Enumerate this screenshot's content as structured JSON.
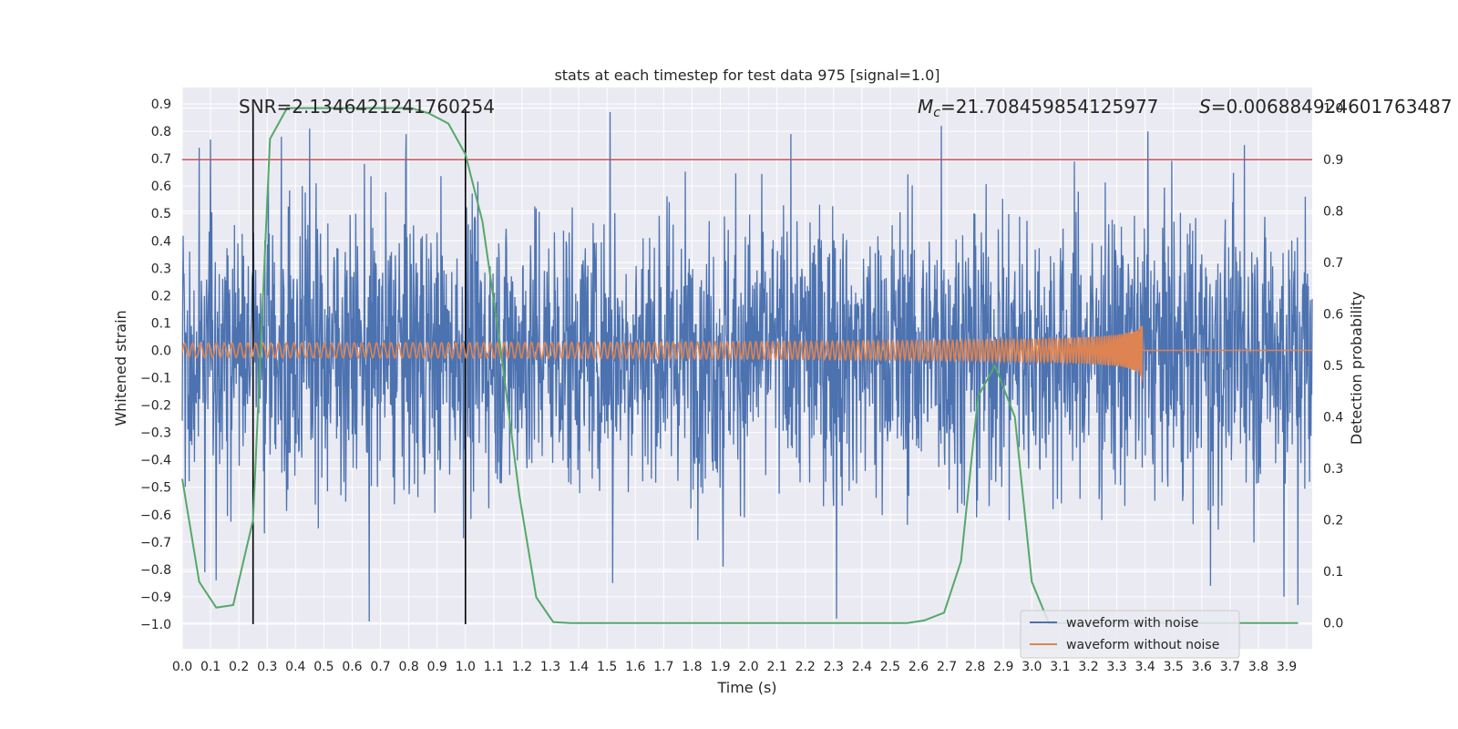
{
  "chart_data": {
    "type": "line",
    "title": "stats at each timestep for test data 975 [signal=1.0]",
    "xlabel": "Time (s)",
    "ylabel": "Whitened strain",
    "y2label": "Detection probability",
    "xlim": [
      0.0,
      3.99
    ],
    "ylim": [
      -1.09,
      0.96
    ],
    "y2lim": [
      -0.05,
      1.04
    ],
    "x_ticks": [
      "0.0",
      "0.1",
      "0.2",
      "0.3",
      "0.4",
      "0.5",
      "0.6",
      "0.7",
      "0.8",
      "0.9",
      "1.0",
      "1.1",
      "1.2",
      "1.3",
      "1.4",
      "1.5",
      "1.6",
      "1.7",
      "1.8",
      "1.9",
      "2.0",
      "2.1",
      "2.2",
      "2.3",
      "2.4",
      "2.5",
      "2.6",
      "2.7",
      "2.8",
      "2.9",
      "3.0",
      "3.1",
      "3.2",
      "3.3",
      "3.4",
      "3.5",
      "3.6",
      "3.7",
      "3.8",
      "3.9"
    ],
    "y_ticks": [
      "0.9",
      "0.8",
      "0.7",
      "0.6",
      "0.5",
      "0.4",
      "0.3",
      "0.2",
      "0.1",
      "0.0",
      "−0.1",
      "−0.2",
      "−0.3",
      "−0.4",
      "−0.5",
      "−0.6",
      "−0.7",
      "−0.8",
      "−0.9",
      "−1.0"
    ],
    "y2_ticks": [
      "1.0",
      "0.9",
      "0.8",
      "0.7",
      "0.6",
      "0.5",
      "0.4",
      "0.3",
      "0.2",
      "0.1",
      "0.0"
    ],
    "annotations": {
      "snr": "SNR=2.1346421241760254",
      "mc_symbol": "M",
      "mc_sub": "c",
      "mc_value": "=21.708459854125977",
      "s_symbol": "S",
      "s_value": "=0.006884924601763487"
    },
    "threshold_line": {
      "axis": "right",
      "value": 0.9,
      "color": "#c44e52"
    },
    "vertical_markers": [
      0.25,
      1.0
    ],
    "series": [
      {
        "name": "waveform with noise",
        "axis": "left",
        "color": "#4c72b0",
        "description": "dense whitened strain noise, roughly uniform amplitude envelope about ±0.35 with peaks near ±0.85",
        "envelope": 0.35,
        "peak_samples": [
          {
            "x": 0.06,
            "y": 0.74
          },
          {
            "x": 0.08,
            "y": -0.81
          },
          {
            "x": 0.1,
            "y": 0.77
          },
          {
            "x": 0.12,
            "y": -0.84
          },
          {
            "x": 0.35,
            "y": 0.78
          },
          {
            "x": 0.45,
            "y": 0.81
          },
          {
            "x": 0.66,
            "y": -0.99
          },
          {
            "x": 0.79,
            "y": 0.79
          },
          {
            "x": 1.51,
            "y": 0.87
          },
          {
            "x": 1.52,
            "y": -0.85
          },
          {
            "x": 1.91,
            "y": -0.79
          },
          {
            "x": 2.15,
            "y": 0.79
          },
          {
            "x": 2.31,
            "y": -0.98
          },
          {
            "x": 2.68,
            "y": 0.82
          },
          {
            "x": 3.41,
            "y": 0.8
          },
          {
            "x": 3.63,
            "y": -0.86
          },
          {
            "x": 3.75,
            "y": 0.75
          },
          {
            "x": 3.89,
            "y": -0.9
          },
          {
            "x": 3.94,
            "y": -0.93
          }
        ]
      },
      {
        "name": "waveform without noise",
        "axis": "left",
        "color": "#dd8452",
        "description": "inspiral chirp with growing amplitude and frequency, merger near t=3.39 s, flat after",
        "merger_time": 3.39,
        "peak_amplitude": 0.12
      },
      {
        "name": "Detection probability",
        "axis": "right",
        "color": "#55a868",
        "x": [
          0.0,
          0.06,
          0.12,
          0.18,
          0.25,
          0.31,
          0.37,
          0.44,
          0.5,
          0.56,
          0.62,
          0.69,
          0.75,
          0.81,
          0.87,
          0.94,
          1.0,
          1.06,
          1.12,
          1.19,
          1.25,
          1.31,
          1.37,
          1.44,
          1.5,
          1.56,
          1.62,
          1.69,
          1.75,
          1.81,
          1.87,
          1.94,
          2.0,
          2.06,
          2.12,
          2.19,
          2.25,
          2.31,
          2.37,
          2.44,
          2.5,
          2.56,
          2.62,
          2.69,
          2.75,
          2.81,
          2.87,
          2.94,
          3.0,
          3.06,
          3.12,
          3.19,
          3.25,
          3.31,
          3.37,
          3.44,
          3.5,
          3.56,
          3.62,
          3.69,
          3.75,
          3.81,
          3.87,
          3.94
        ],
        "values": [
          0.28,
          0.08,
          0.03,
          0.035,
          0.2,
          0.94,
          1.0,
          1.0,
          1.0,
          1.0,
          1.0,
          1.0,
          1.0,
          1.0,
          0.99,
          0.97,
          0.91,
          0.78,
          0.55,
          0.25,
          0.05,
          0.002,
          0.0,
          0.0,
          0.0,
          0.0,
          0.0,
          0.0,
          0.0,
          0.0,
          0.0,
          0.0,
          0.0,
          0.0,
          0.0,
          0.0,
          0.0,
          0.0,
          0.0,
          0.0,
          0.0,
          0.0,
          0.005,
          0.02,
          0.12,
          0.44,
          0.5,
          0.4,
          0.08,
          0.0,
          0.0,
          0.0,
          0.0,
          0.0,
          0.0,
          0.0,
          0.0,
          0.0,
          0.0,
          0.0,
          0.0,
          0.0,
          0.0,
          0.0
        ]
      }
    ],
    "legend": {
      "placement": "lower-right",
      "entries": [
        {
          "label": "waveform with noise",
          "color": "#4c72b0"
        },
        {
          "label": "waveform without noise",
          "color": "#dd8452"
        }
      ]
    }
  }
}
